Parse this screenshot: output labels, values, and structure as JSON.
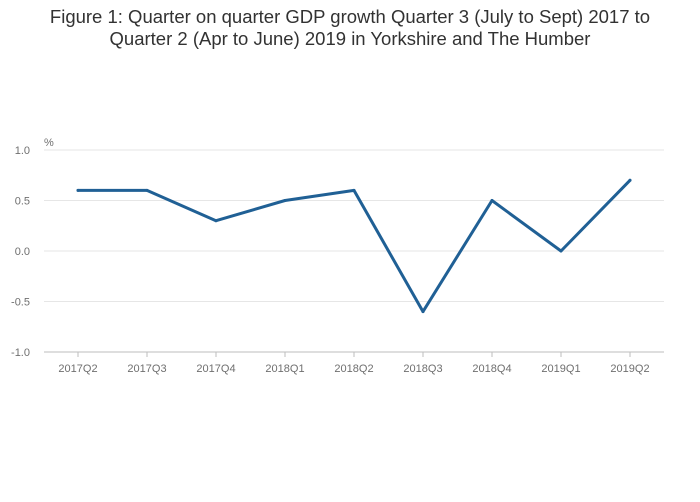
{
  "title_lines": [
    "Figure 1: Quarter on quarter GDP growth Quarter 3 (July to Sept) 2017 to",
    "Quarter 2 (Apr to June) 2019 in Yorkshire and The Humber"
  ],
  "chart_data": {
    "type": "line",
    "title": "Figure 1: Quarter on quarter GDP growth Quarter 3 (July to Sept) 2017 to Quarter 2 (Apr to June) 2019 in Yorkshire and The Humber",
    "xlabel": "",
    "ylabel": "%",
    "categories": [
      "2017Q2",
      "2017Q3",
      "2017Q4",
      "2018Q1",
      "2018Q2",
      "2018Q3",
      "2018Q4",
      "2019Q1",
      "2019Q2"
    ],
    "series": [
      {
        "values": [
          0.6,
          0.6,
          0.3,
          0.5,
          0.6,
          -0.6,
          0.5,
          0.0,
          0.7
        ]
      }
    ],
    "ylim": [
      -1.0,
      1.0
    ],
    "yticks": [
      "1.0",
      "0.5",
      "0.0",
      "-0.5",
      "-1.0"
    ],
    "ytick_values": [
      1.0,
      0.5,
      0.0,
      -0.5,
      -1.0
    ],
    "grid": true,
    "line_color": "#206095",
    "grid_color": "#e6e6e6"
  }
}
